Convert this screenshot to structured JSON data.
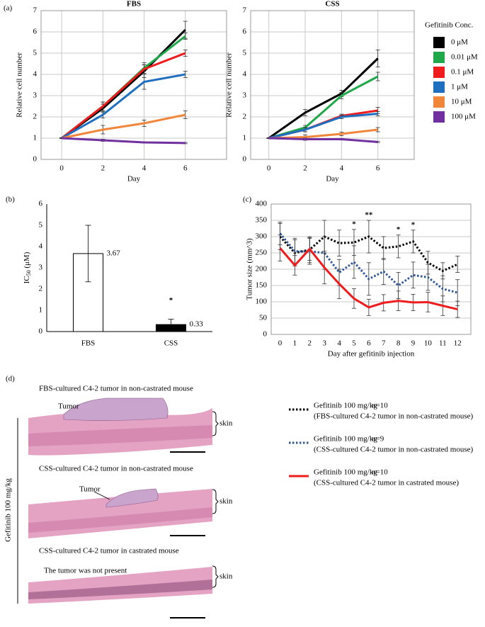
{
  "panel_labels": [
    "(a)",
    "(b)",
    "(c)",
    "(d)"
  ],
  "chart_data": [
    {
      "type": "line",
      "title": "FBS",
      "xlabel": "Day",
      "ylabel": "Relative cell number",
      "x": [
        0,
        2,
        4,
        6
      ],
      "xlim": [
        -1,
        8
      ],
      "xticks": [
        0,
        2,
        4,
        6
      ],
      "ylim": [
        0,
        7
      ],
      "yticks": [
        0,
        1,
        2,
        3,
        4,
        5,
        6,
        7
      ],
      "grid": true,
      "xgrid": true,
      "series": [
        {
          "color": "#000000",
          "values": [
            1,
            2.4,
            4.15,
            6.1
          ],
          "errors": [
            0.02,
            0.2,
            0.3,
            0.4
          ]
        },
        {
          "color": "#1fa84a",
          "values": [
            1,
            2.5,
            4.3,
            5.8
          ],
          "errors": [
            0.02,
            0.2,
            0.25,
            0.15
          ]
        },
        {
          "color": "#ee1c1c",
          "values": [
            1,
            2.5,
            4.25,
            5.0
          ],
          "errors": [
            0.02,
            0.2,
            0.2,
            0.15
          ]
        },
        {
          "color": "#1e6fc0",
          "values": [
            1,
            2.1,
            3.65,
            4.0
          ],
          "errors": [
            0.02,
            0.15,
            0.35,
            0.15
          ]
        },
        {
          "color": "#f0863a",
          "values": [
            1,
            1.4,
            1.7,
            2.1
          ],
          "errors": [
            0.02,
            0.2,
            0.15,
            0.18
          ]
        },
        {
          "color": "#7030a0",
          "values": [
            1,
            0.9,
            0.8,
            0.77
          ],
          "errors": [
            0.02,
            0.05,
            0.03,
            0.03
          ]
        }
      ]
    },
    {
      "type": "line",
      "title": "CSS",
      "xlabel": "Day",
      "ylabel": "Relative cell number",
      "legend_title": "Gefitinib Conc.",
      "x": [
        0,
        2,
        4,
        6
      ],
      "xlim": [
        -1,
        8
      ],
      "xticks": [
        0,
        2,
        4,
        6
      ],
      "ylim": [
        0,
        7
      ],
      "yticks": [
        0,
        1,
        2,
        3,
        4,
        5,
        6,
        7
      ],
      "grid": true,
      "xgrid": true,
      "series": [
        {
          "name": "0 μM",
          "color": "#000000",
          "values": [
            1,
            2.2,
            3.1,
            4.75
          ],
          "errors": [
            0.02,
            0.15,
            0.15,
            0.4
          ]
        },
        {
          "name": "0.01 μM",
          "color": "#1fa84a",
          "values": [
            1,
            1.5,
            3.0,
            3.9
          ],
          "errors": [
            0.02,
            0.1,
            0.15,
            0.2
          ]
        },
        {
          "name": "0.1 μM",
          "color": "#ee1c1c",
          "values": [
            1,
            1.4,
            2.05,
            2.3
          ],
          "errors": [
            0.02,
            0.1,
            0.08,
            0.15
          ]
        },
        {
          "name": "1 μM",
          "color": "#1e6fc0",
          "values": [
            1,
            1.4,
            2.0,
            2.15
          ],
          "errors": [
            0.02,
            0.1,
            0.08,
            0.1
          ]
        },
        {
          "name": "10 μM",
          "color": "#f0863a",
          "values": [
            1,
            1.05,
            1.2,
            1.4
          ],
          "errors": [
            0.02,
            0.1,
            0.08,
            0.1
          ]
        },
        {
          "name": "100 μM",
          "color": "#7030a0",
          "values": [
            1,
            0.95,
            0.95,
            0.82
          ],
          "errors": [
            0.02,
            0.05,
            0.04,
            0.03
          ]
        }
      ]
    },
    {
      "type": "bar",
      "ylabel_parts": [
        "IC",
        "50",
        " (μM)"
      ],
      "categories": [
        "FBS",
        "CSS"
      ],
      "values": [
        3.67,
        0.33
      ],
      "errors": [
        1.33,
        0.25
      ],
      "colors": [
        "#ffffff",
        "#000000"
      ],
      "ylim": [
        0,
        6
      ],
      "yticks": [
        0,
        1,
        2,
        3,
        4,
        5,
        6
      ],
      "annotations": [
        {
          "text": "*",
          "category": "CSS"
        }
      ]
    },
    {
      "type": "line",
      "xlabel": "Day after gefitinib injection",
      "ylabel": "Tumor size (mm^3)",
      "x": [
        0,
        1,
        2,
        3,
        4,
        5,
        6,
        7,
        8,
        9,
        10,
        11,
        12
      ],
      "xlim": [
        -0.6,
        12.9
      ],
      "xticks": [
        0,
        1,
        2,
        3,
        4,
        5,
        6,
        7,
        8,
        9,
        10,
        11,
        12
      ],
      "ylim": [
        0,
        400
      ],
      "yticks": [
        0,
        50,
        100,
        150,
        200,
        250,
        300,
        350,
        400
      ],
      "grid": true,
      "xgrid": false,
      "series": [
        {
          "name": "Gefitinib 100 mg/kg",
          "n": "n=10",
          "description": "(FBS-cultured C4-2 tumor in non-castrated mouse)",
          "color": "#000000",
          "dash": "dotted",
          "values": [
            300,
            250,
            260,
            300,
            280,
            282,
            300,
            265,
            270,
            285,
            220,
            195,
            215
          ],
          "errors": [
            40,
            40,
            40,
            50,
            40,
            40,
            50,
            35,
            35,
            35,
            35,
            25,
            25
          ]
        },
        {
          "name": "Gefitinib 100 mg/kg",
          "n": "n=9",
          "description": "(CSS-cultured C4-2 tumor in non-castrated mouse)",
          "color": "#2f5597",
          "dash": "dotted",
          "values": [
            310,
            255,
            255,
            250,
            190,
            222,
            170,
            193,
            150,
            182,
            175,
            140,
            128
          ],
          "errors": [
            35,
            40,
            40,
            50,
            40,
            50,
            50,
            40,
            40,
            40,
            40,
            40,
            40
          ]
        },
        {
          "name": "Gefitinib 100 mg/kg",
          "n": "n=10",
          "description": "(CSS-cultured C4-2 tumor in castrated mouse)",
          "color": "#ee1c1c",
          "dash": "solid",
          "values": [
            265,
            212,
            262,
            205,
            155,
            110,
            83,
            97,
            103,
            98,
            99,
            88,
            77
          ],
          "errors": [
            40,
            30,
            35,
            50,
            45,
            30,
            25,
            25,
            30,
            25,
            30,
            30,
            25
          ]
        }
      ],
      "annotations": [
        {
          "text": "*",
          "x": 5
        },
        {
          "text": "**",
          "x": 6
        },
        {
          "text": "*",
          "x": 8
        },
        {
          "text": "*",
          "x": 9
        }
      ]
    }
  ],
  "histology": {
    "treatment": "Gefitinib 100 mg/kg",
    "skin": "skin",
    "sections": [
      {
        "title": "FBS-cultured C4-2 tumor in non-castrated mouse",
        "label": "Tumor"
      },
      {
        "title": "CSS-cultured C4-2 tumor in non-castrated mouse",
        "label": "Tumor"
      },
      {
        "title": "CSS-cultured C4-2 tumor in castrated mouse",
        "label": "The tumor was not present"
      }
    ]
  }
}
